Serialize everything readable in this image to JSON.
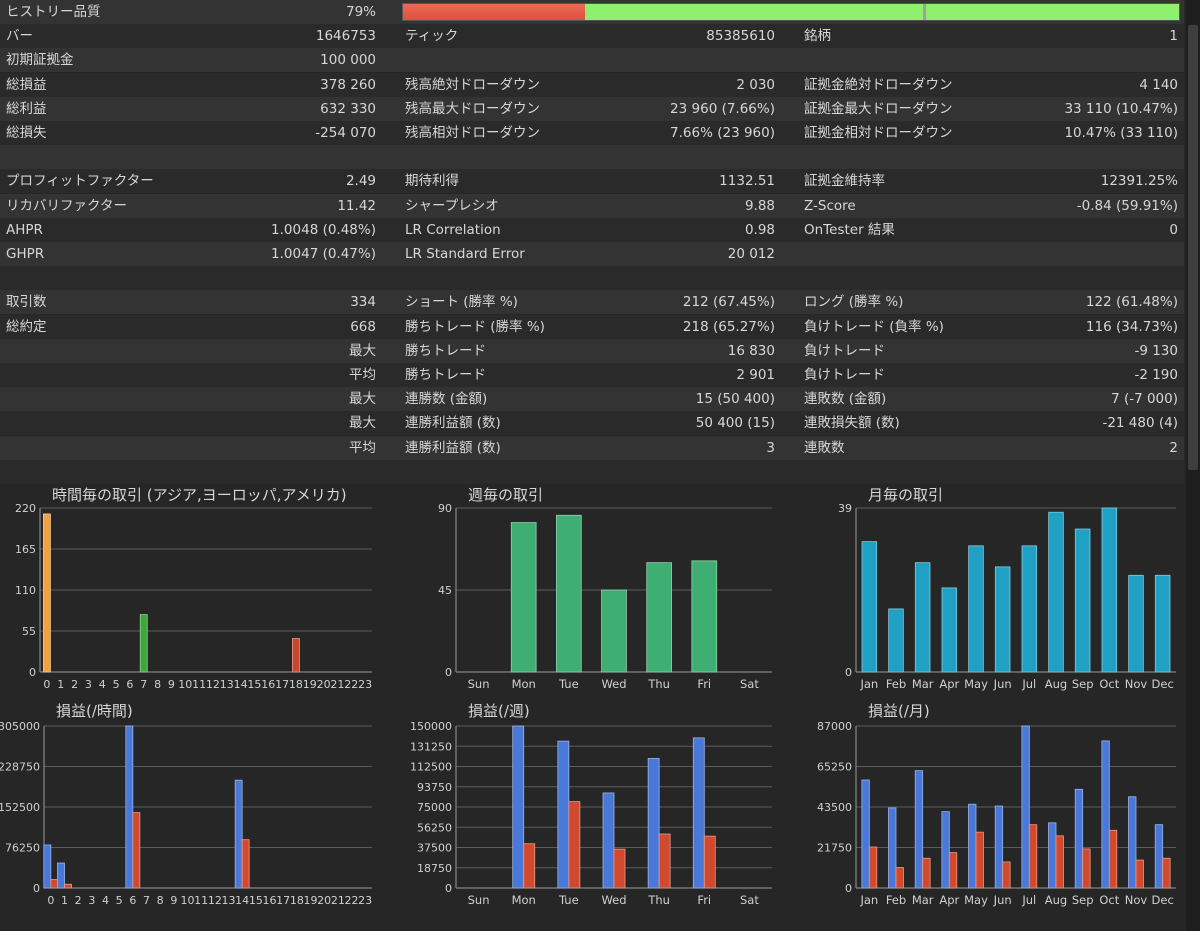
{
  "quality": {
    "label": "ヒストリー品質",
    "value": "79%",
    "fraction": 0.79,
    "bad_fraction": 0.235,
    "marker_fraction": 0.67,
    "colors": {
      "bad": "#e0503c",
      "good": "#8ef06c",
      "marker": "#a0a0a0"
    }
  },
  "rows": [
    {
      "c1l": "バー",
      "c1v": "1646753",
      "c2l": "ティック",
      "c2v": "85385610",
      "c3l": "銘柄",
      "c3v": "1"
    },
    {
      "c1l": "初期証拠金",
      "c1v": "100 000",
      "c2l": "",
      "c2v": "",
      "c3l": "",
      "c3v": ""
    },
    {
      "c1l": "総損益",
      "c1v": "378 260",
      "c2l": "残高絶対ドローダウン",
      "c2v": "2 030",
      "c3l": "証拠金絶対ドローダウン",
      "c3v": "4 140"
    },
    {
      "c1l": "総利益",
      "c1v": "632 330",
      "c2l": "残高最大ドローダウン",
      "c2v": "23 960 (7.66%)",
      "c3l": "証拠金最大ドローダウン",
      "c3v": "33 110 (10.47%)"
    },
    {
      "c1l": "総損失",
      "c1v": "-254 070",
      "c2l": "残高相対ドローダウン",
      "c2v": "7.66% (23 960)",
      "c3l": "証拠金相対ドローダウン",
      "c3v": "10.47% (33 110)"
    },
    {
      "c1l": "",
      "c1v": "",
      "c2l": "",
      "c2v": "",
      "c3l": "",
      "c3v": ""
    },
    {
      "c1l": "プロフィットファクター",
      "c1v": "2.49",
      "c2l": "期待利得",
      "c2v": "1132.51",
      "c3l": "証拠金維持率",
      "c3v": "12391.25%"
    },
    {
      "c1l": "リカバリファクター",
      "c1v": "11.42",
      "c2l": "シャープレシオ",
      "c2v": "9.88",
      "c3l": "Z-Score",
      "c3v": "-0.84 (59.91%)"
    },
    {
      "c1l": "AHPR",
      "c1v": "1.0048 (0.48%)",
      "c2l": "LR Correlation",
      "c2v": "0.98",
      "c3l": "OnTester 結果",
      "c3v": "0"
    },
    {
      "c1l": "GHPR",
      "c1v": "1.0047 (0.47%)",
      "c2l": "LR Standard Error",
      "c2v": "20 012",
      "c3l": "",
      "c3v": ""
    },
    {
      "c1l": "",
      "c1v": "",
      "c2l": "",
      "c2v": "",
      "c3l": "",
      "c3v": ""
    },
    {
      "c1l": "取引数",
      "c1v": "334",
      "c2l": "ショート (勝率 %)",
      "c2v": "212 (67.45%)",
      "c3l": "ロング (勝率 %)",
      "c3v": "122 (61.48%)"
    },
    {
      "c1l": "総約定",
      "c1v": "668",
      "c2l": "勝ちトレード (勝率 %)",
      "c2v": "218 (65.27%)",
      "c3l": "負けトレード (負率 %)",
      "c3v": "116 (34.73%)"
    },
    {
      "c1l": "",
      "c1v": "最大",
      "c2l": "勝ちトレード",
      "c2v": "16 830",
      "c3l": "負けトレード",
      "c3v": "-9 130"
    },
    {
      "c1l": "",
      "c1v": "平均",
      "c2l": "勝ちトレード",
      "c2v": "2 901",
      "c3l": "負けトレード",
      "c3v": "-2 190"
    },
    {
      "c1l": "",
      "c1v": "最大",
      "c2l": "連勝数 (金額)",
      "c2v": "15 (50 400)",
      "c3l": "連敗数 (金額)",
      "c3v": "7 (-7 000)"
    },
    {
      "c1l": "",
      "c1v": "最大",
      "c2l": "連勝利益額 (数)",
      "c2v": "50 400 (15)",
      "c3l": "連敗損失額 (数)",
      "c3v": "-21 480 (4)"
    },
    {
      "c1l": "",
      "c1v": "平均",
      "c2l": "連勝利益額 (数)",
      "c2v": "3",
      "c3l": "連敗数",
      "c3v": "2"
    },
    {
      "c1l": "",
      "c1v": "",
      "c2l": "",
      "c2v": "",
      "c3l": "",
      "c3v": ""
    }
  ],
  "chart_data": [
    {
      "id": "hourly-trades",
      "type": "bar",
      "title": "時間毎の取引 (アジア,ヨーロッパ,アメリカ)",
      "categories": [
        "0",
        "1",
        "2",
        "3",
        "4",
        "5",
        "6",
        "7",
        "8",
        "9",
        "10",
        "11",
        "12",
        "13",
        "14",
        "15",
        "16",
        "17",
        "18",
        "19",
        "20",
        "21",
        "22",
        "23"
      ],
      "yticks": [
        0,
        55,
        110,
        165,
        220
      ],
      "ylim": [
        0,
        220
      ],
      "series": [
        {
          "values": [
            212,
            0,
            0,
            0,
            0,
            0,
            0,
            77,
            0,
            0,
            0,
            0,
            0,
            0,
            0,
            0,
            0,
            0,
            45,
            0,
            0,
            0,
            0,
            0
          ],
          "colors": [
            "#f2a040",
            "#f2a040",
            "#f2a040",
            "#f2a040",
            "#f2a040",
            "#f2a040",
            "#f2a040",
            "#3ca83c",
            "#3ca83c",
            "#3ca83c",
            "#3ca83c",
            "#3ca83c",
            "#3ca83c",
            "#3ca83c",
            "#3ca83c",
            "#c8452e",
            "#c8452e",
            "#c8452e",
            "#c8452e",
            "#c8452e",
            "#c8452e",
            "#c8452e",
            "#c8452e",
            "#c8452e"
          ]
        }
      ]
    },
    {
      "id": "weekly-trades",
      "type": "bar",
      "title": "週毎の取引",
      "categories": [
        "Sun",
        "Mon",
        "Tue",
        "Wed",
        "Thu",
        "Fri",
        "Sat"
      ],
      "yticks": [
        0,
        45,
        90
      ],
      "ylim": [
        0,
        90
      ],
      "series": [
        {
          "values": [
            0,
            82,
            86,
            45,
            60,
            61,
            0
          ],
          "color": "#3fae72"
        }
      ]
    },
    {
      "id": "monthly-trades",
      "type": "bar",
      "title": "月毎の取引",
      "categories": [
        "Jan",
        "Feb",
        "Mar",
        "Apr",
        "May",
        "Jun",
        "Jul",
        "Aug",
        "Sep",
        "Oct",
        "Nov",
        "Dec"
      ],
      "yticks": [
        0,
        39
      ],
      "ylim": [
        0,
        39
      ],
      "series": [
        {
          "values": [
            31,
            15,
            26,
            20,
            30,
            25,
            30,
            38,
            34,
            39,
            23,
            23
          ],
          "color": "#1fa0c4"
        }
      ]
    },
    {
      "id": "hourly-pnl",
      "type": "bar",
      "title": "損益(/時間)",
      "categories": [
        "0",
        "1",
        "2",
        "3",
        "4",
        "5",
        "6",
        "7",
        "8",
        "9",
        "10",
        "11",
        "12",
        "13",
        "14",
        "15",
        "16",
        "17",
        "18",
        "19",
        "20",
        "21",
        "22",
        "23"
      ],
      "yticks": [
        0,
        76250,
        152500,
        228750,
        305000
      ],
      "ylim": [
        0,
        305000
      ],
      "series": [
        {
          "values": [
            81000,
            47000,
            0,
            0,
            0,
            0,
            305000,
            0,
            0,
            0,
            0,
            0,
            0,
            0,
            203000,
            0,
            0,
            0,
            0,
            0,
            0,
            0,
            0,
            0
          ],
          "color": "#4a78d8"
        },
        {
          "values": [
            16000,
            7000,
            0,
            0,
            0,
            0,
            142000,
            0,
            0,
            0,
            0,
            0,
            0,
            0,
            91000,
            0,
            0,
            0,
            0,
            0,
            0,
            0,
            0,
            0
          ],
          "color": "#d24a2e"
        }
      ]
    },
    {
      "id": "weekly-pnl",
      "type": "bar",
      "title": "損益(/週)",
      "categories": [
        "Sun",
        "Mon",
        "Tue",
        "Wed",
        "Thu",
        "Fri",
        "Sat"
      ],
      "yticks": [
        0,
        18750,
        37500,
        56250,
        75000,
        93750,
        112500,
        131250,
        150000
      ],
      "ylim": [
        0,
        150000
      ],
      "series": [
        {
          "values": [
            0,
            150000,
            136000,
            88000,
            120000,
            139000,
            0
          ],
          "color": "#4a78d8"
        },
        {
          "values": [
            0,
            41000,
            80000,
            36000,
            50000,
            48000,
            0
          ],
          "color": "#d24a2e"
        }
      ]
    },
    {
      "id": "monthly-pnl",
      "type": "bar",
      "title": "損益(/月)",
      "categories": [
        "Jan",
        "Feb",
        "Mar",
        "Apr",
        "May",
        "Jun",
        "Jul",
        "Aug",
        "Sep",
        "Oct",
        "Nov",
        "Dec"
      ],
      "yticks": [
        0,
        21750,
        43500,
        65250,
        87000
      ],
      "ylim": [
        0,
        87000
      ],
      "series": [
        {
          "values": [
            58000,
            43000,
            63000,
            41000,
            45000,
            44000,
            87000,
            35000,
            53000,
            79000,
            49000,
            34000
          ],
          "color": "#4a78d8"
        },
        {
          "values": [
            22000,
            11000,
            16000,
            19000,
            30000,
            14000,
            34000,
            28000,
            21000,
            31000,
            15000,
            16000
          ],
          "color": "#d24a2e"
        }
      ]
    }
  ]
}
